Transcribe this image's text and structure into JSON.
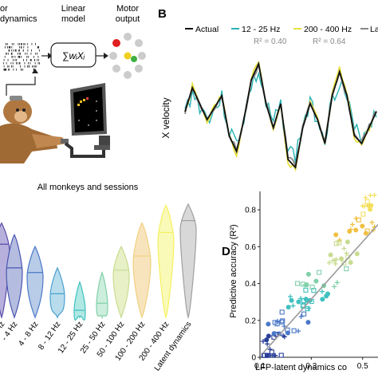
{
  "panel_a": {
    "label_left_line1": "or",
    "label_left_line2": "dynamics",
    "model_line1": "Linear",
    "model_line2": "model",
    "formula": "∑wᵢXᵢ",
    "output_line1": "Motor",
    "output_line2": "output",
    "colors": {
      "red": "#e02020",
      "yellow": "#f0d020",
      "green": "#40b040",
      "gray": "#cccccc"
    }
  },
  "panel_b": {
    "letter": "B",
    "ylabel": "X velocity",
    "legend": [
      {
        "name": "Actual",
        "color": "#111111"
      },
      {
        "name": "12 - 25 Hz",
        "color": "#2ab3b3"
      },
      {
        "name": "200 - 400 Hz",
        "color": "#e8e040"
      },
      {
        "name": "La",
        "color": "#888888"
      }
    ],
    "r2_mid": "R² = 0.40",
    "r2_right": "R² = 0.64"
  },
  "chart_data": [
    {
      "type": "violin",
      "title": "All monkeys and sessions",
      "categories": [
        "- 4 Hz",
        "- 4 Hz",
        "4 - 8 Hz",
        "8 - 12 Hz",
        "12 - 25 Hz",
        "25 - 50 Hz",
        "50 - 100 Hz",
        "100 - 200 Hz",
        "200 - 400 Hz",
        "Latent dynamics"
      ],
      "medians": [
        0.62,
        0.42,
        0.38,
        0.2,
        0.06,
        0.12,
        0.4,
        0.52,
        0.72,
        0.82
      ],
      "tops": [
        0.8,
        0.7,
        0.6,
        0.42,
        0.3,
        0.38,
        0.6,
        0.8,
        0.95,
        0.96
      ],
      "colors": [
        "#5a4aa8",
        "#4a56b0",
        "#4a78c8",
        "#4aa0d0",
        "#40c0c0",
        "#80d0a8",
        "#c8dc90",
        "#f0d080",
        "#f4f060",
        "#a0a0a0"
      ],
      "fills": [
        "#b8b0dc",
        "#b4bce0",
        "#b8cce8",
        "#b8dcec",
        "#b0e8e4",
        "#cceedc",
        "#e8f0c8",
        "#f8e4bc",
        "#fafab8",
        "#d8d8d8"
      ]
    },
    {
      "type": "scatter",
      "letter": "D",
      "xlabel": "LFP-latent dynamics co",
      "ylabel": "Predictive accuracy (R²)",
      "xticks": [
        "0.1",
        "0.3",
        "0.5"
      ],
      "yticks": [
        "0",
        "0.2",
        "0.4",
        "0.6",
        "0.8"
      ],
      "xlim": [
        0.1,
        0.56
      ],
      "ylim": [
        0,
        0.9
      ]
    }
  ]
}
